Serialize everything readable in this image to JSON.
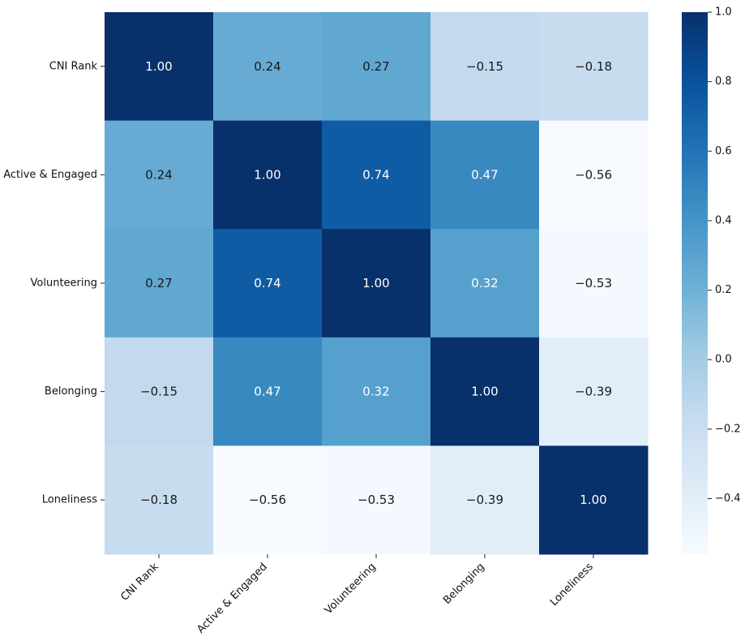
{
  "chart_data": {
    "type": "heatmap",
    "title": "",
    "xlabel": "",
    "ylabel": "",
    "row_labels": [
      "CNI Rank",
      "Active & Engaged",
      "Volunteering",
      "Belonging",
      "Loneliness"
    ],
    "col_labels": [
      "CNI Rank",
      "Active & Engaged",
      "Volunteering",
      "Belonging",
      "Loneliness"
    ],
    "values": [
      [
        1.0,
        0.24,
        0.27,
        -0.15,
        -0.18
      ],
      [
        0.24,
        1.0,
        0.74,
        0.47,
        -0.56
      ],
      [
        0.27,
        0.74,
        1.0,
        0.32,
        -0.53
      ],
      [
        -0.15,
        0.47,
        0.32,
        1.0,
        -0.39
      ],
      [
        -0.18,
        -0.56,
        -0.53,
        -0.39,
        1.0
      ]
    ],
    "value_labels": [
      [
        "1.00",
        "0.24",
        "0.27",
        "−0.15",
        "−0.18"
      ],
      [
        "0.24",
        "1.00",
        "0.74",
        "0.47",
        "−0.56"
      ],
      [
        "0.27",
        "0.74",
        "1.00",
        "0.32",
        "−0.53"
      ],
      [
        "−0.15",
        "0.47",
        "0.32",
        "1.00",
        "−0.39"
      ],
      [
        "−0.18",
        "−0.56",
        "−0.53",
        "−0.39",
        "1.00"
      ]
    ],
    "colormap": "Blues",
    "color_range": [
      -0.56,
      1.0
    ],
    "colorbar": {
      "ticks": [
        1.0,
        0.8,
        0.6,
        0.4,
        0.2,
        0.0,
        -0.2,
        -0.4
      ],
      "tick_labels": [
        "1.0",
        "0.8",
        "0.6",
        "0.4",
        "0.2",
        "0.0",
        "−0.2",
        "−0.4"
      ]
    }
  }
}
